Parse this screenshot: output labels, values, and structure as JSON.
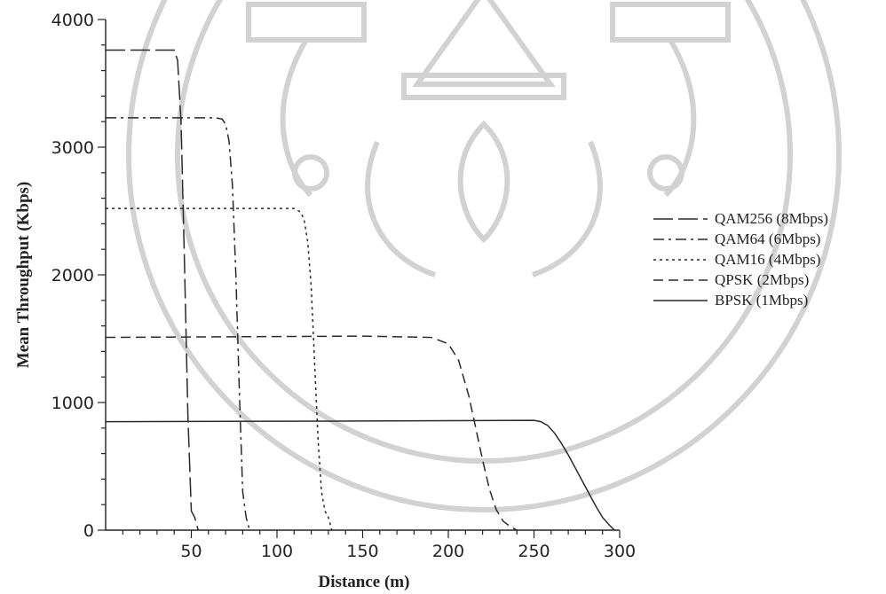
{
  "chart_data": {
    "type": "line",
    "title": "",
    "xlabel": "Distance (m)",
    "ylabel": "Mean Throughput (Kbps)",
    "xlim": [
      0,
      300
    ],
    "ylim": [
      0,
      4000
    ],
    "x_ticks": [
      50,
      100,
      150,
      200,
      250,
      300
    ],
    "y_ticks": [
      0,
      1000,
      2000,
      3000,
      4000
    ],
    "grid": false,
    "legend_position": "right",
    "series": [
      {
        "name": "QAM256 (8Mbps)",
        "dash": "long-dash",
        "x": [
          0,
          40,
          42,
          44,
          46,
          48,
          50,
          52,
          54
        ],
        "y": [
          3760,
          3760,
          3680,
          3200,
          2100,
          900,
          150,
          100,
          0
        ]
      },
      {
        "name": "QAM64 (6Mbps)",
        "dash": "dash-dot",
        "x": [
          0,
          64,
          68,
          70,
          72,
          74,
          76,
          78,
          80,
          82,
          84
        ],
        "y": [
          3230,
          3230,
          3220,
          3180,
          3050,
          2700,
          2000,
          1100,
          300,
          100,
          0
        ]
      },
      {
        "name": "QAM16 (4Mbps)",
        "dash": "dotted",
        "x": [
          0,
          100,
          110,
          114,
          116,
          118,
          120,
          122,
          124,
          126,
          128,
          130,
          132
        ],
        "y": [
          2520,
          2520,
          2520,
          2490,
          2420,
          2250,
          1900,
          1300,
          700,
          300,
          150,
          100,
          0
        ]
      },
      {
        "name": "QPSK (2Mbps)",
        "dash": "dashed",
        "x": [
          0,
          150,
          190,
          200,
          206,
          212,
          216,
          220,
          224,
          228,
          232,
          236,
          240
        ],
        "y": [
          1510,
          1520,
          1510,
          1460,
          1330,
          1050,
          800,
          550,
          320,
          160,
          70,
          30,
          0
        ]
      },
      {
        "name": "BPSK (1Mbps)",
        "dash": "solid",
        "x": [
          0,
          150,
          250,
          254,
          258,
          262,
          266,
          270,
          274,
          278,
          282,
          286,
          290,
          294,
          297
        ],
        "y": [
          850,
          855,
          860,
          850,
          820,
          760,
          680,
          590,
          490,
          390,
          290,
          190,
          100,
          40,
          0
        ]
      }
    ]
  }
}
